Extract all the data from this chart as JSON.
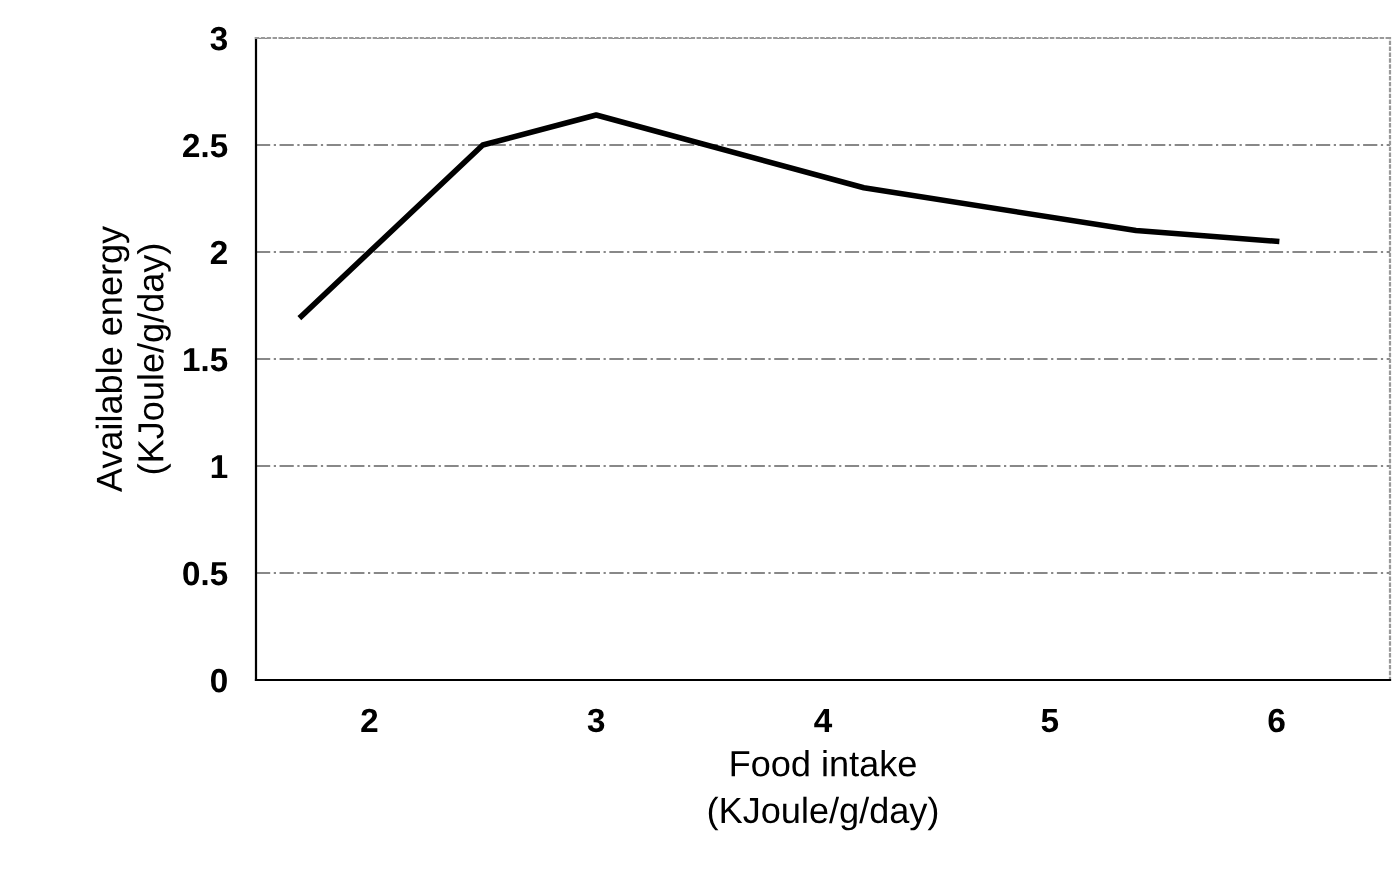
{
  "chart_data": {
    "type": "line",
    "xlabel": "Food intake\n(KJoule/g/day)",
    "ylabel": "Available energy\n(KJoule/g/day)",
    "series": [
      {
        "color": "#000000",
        "x": [
          1.7,
          2.5,
          3.0,
          4.18,
          5.38,
          6.0
        ],
        "values": [
          1.7,
          2.5,
          2.64,
          2.3,
          2.1,
          2.05
        ]
      }
    ],
    "xlim": [
      1.5,
      6.5
    ],
    "xticks": [
      2,
      3,
      4,
      5,
      6
    ],
    "ylim": [
      0,
      3
    ],
    "yticks": [
      0,
      0.5,
      1,
      1.5,
      2,
      2.5,
      3
    ],
    "grid": "y",
    "marker": "none",
    "line_style": "solid"
  }
}
